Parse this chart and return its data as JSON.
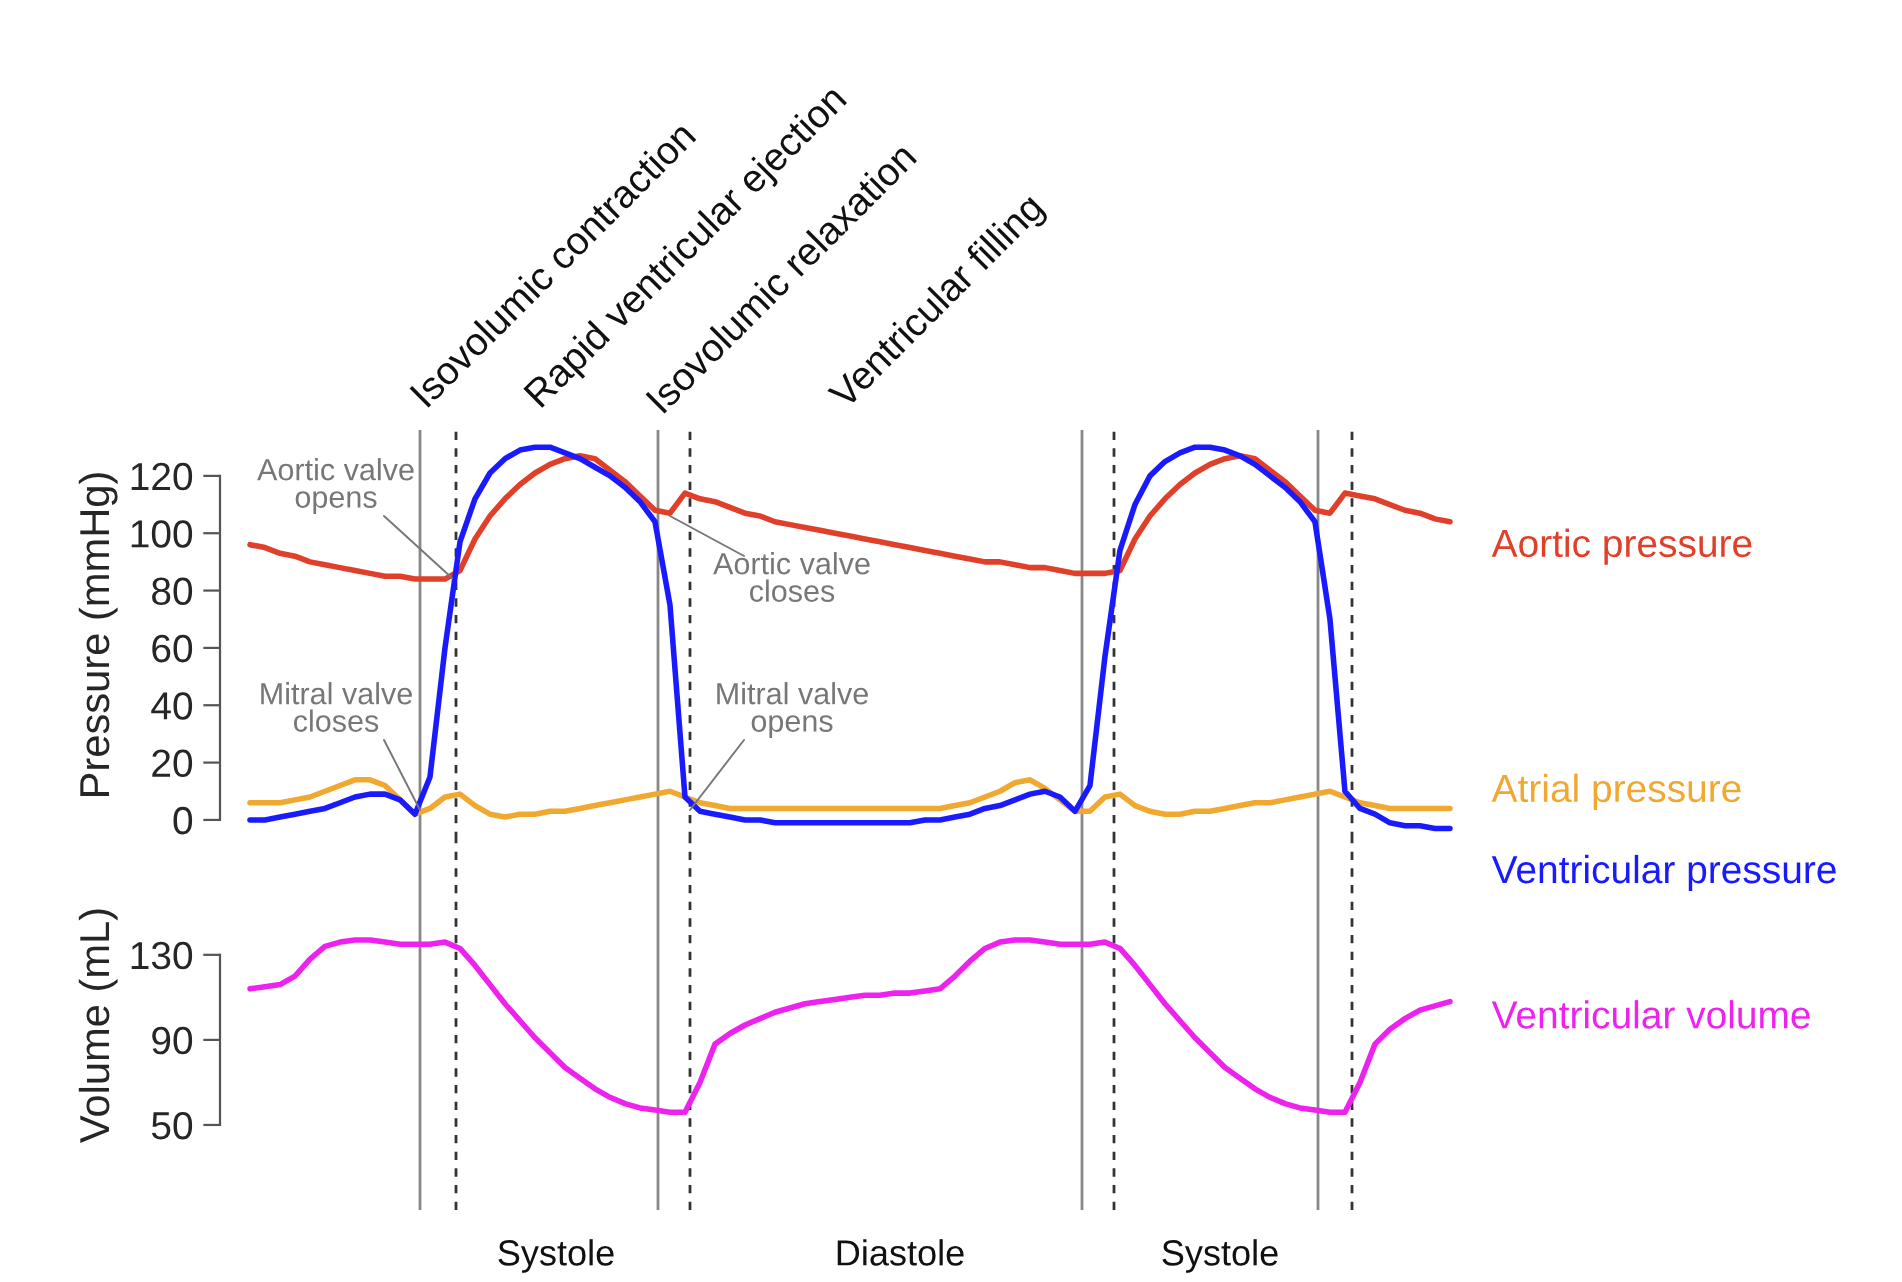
{
  "chart_data": [
    {
      "type": "line",
      "ylabel": "Pressure (mmHg)",
      "ylim": [
        -7,
        136
      ],
      "yticks": [
        0,
        20,
        40,
        60,
        80,
        100,
        120
      ],
      "tick_labels": "y",
      "grid": false,
      "legend": false,
      "categories": [
        null,
        null,
        null,
        null,
        null,
        null,
        null,
        null,
        null,
        null,
        null,
        null,
        null,
        null,
        null,
        null,
        null,
        null,
        null,
        null,
        null,
        null,
        null,
        null,
        null,
        null,
        null,
        null,
        null,
        null,
        null,
        null,
        null,
        null,
        null,
        null,
        null,
        null,
        null,
        null,
        null,
        null,
        null,
        null,
        null,
        null,
        null,
        null,
        null,
        null,
        null,
        null,
        null,
        null,
        null,
        null,
        null,
        null,
        null,
        null,
        null,
        null,
        null,
        null,
        null,
        null,
        null,
        null,
        null,
        null,
        null,
        null,
        null,
        null,
        null,
        null,
        null,
        null,
        null,
        null,
        null
      ],
      "series": [
        {
          "name": "Aortic pressure",
          "color": "#e0402a",
          "values": [
            96,
            95,
            93,
            92,
            90,
            89,
            88,
            87,
            86,
            85,
            85,
            84,
            84,
            84,
            87,
            98,
            106,
            112,
            117,
            121,
            124,
            126,
            127,
            126,
            122,
            118,
            113,
            108,
            107,
            114,
            112,
            111,
            109,
            107,
            106,
            104,
            103,
            102,
            101,
            100,
            99,
            98,
            97,
            96,
            95,
            94,
            93,
            92,
            91,
            90,
            90,
            89,
            88,
            88,
            87,
            86,
            86,
            86,
            87,
            98,
            106,
            112,
            117,
            121,
            124,
            126,
            127,
            126,
            122,
            118,
            113,
            108,
            107,
            114,
            113,
            112,
            110,
            108,
            107,
            105,
            104
          ]
        },
        {
          "name": "Atrial pressure",
          "color": "#f0a830",
          "values": [
            6,
            6,
            6,
            7,
            8,
            10,
            12,
            14,
            14,
            12,
            7,
            2,
            4,
            8,
            9,
            5,
            2,
            1,
            2,
            2,
            3,
            3,
            4,
            5,
            6,
            7,
            8,
            9,
            10,
            8,
            6,
            5,
            4,
            4,
            4,
            4,
            4,
            4,
            4,
            4,
            4,
            4,
            4,
            4,
            4,
            4,
            4,
            5,
            6,
            8,
            10,
            13,
            14,
            11,
            7,
            3,
            3,
            8,
            9,
            5,
            3,
            2,
            2,
            3,
            3,
            4,
            5,
            6,
            6,
            7,
            8,
            9,
            10,
            8,
            6,
            5,
            4,
            4,
            4,
            4,
            4
          ]
        },
        {
          "name": "Ventricular pressure",
          "color": "#1a1aff",
          "values": [
            0,
            0,
            1,
            2,
            3,
            4,
            6,
            8,
            9,
            9,
            7,
            2,
            15,
            60,
            97,
            112,
            121,
            126,
            129,
            130,
            130,
            128,
            126,
            123,
            120,
            116,
            111,
            104,
            75,
            8,
            3,
            2,
            1,
            0,
            0,
            -1,
            -1,
            -1,
            -1,
            -1,
            -1,
            -1,
            -1,
            -1,
            -1,
            0,
            0,
            1,
            2,
            4,
            5,
            7,
            9,
            10,
            8,
            3,
            12,
            57,
            94,
            110,
            120,
            125,
            128,
            130,
            130,
            129,
            127,
            124,
            120,
            116,
            111,
            104,
            70,
            10,
            4,
            2,
            -1,
            -2,
            -2,
            -3,
            -3
          ]
        }
      ],
      "annotations": [
        "Aortic valve\nopens",
        "Aortic valve\ncloses",
        "Mitral valve\ncloses",
        "Mitral valve\nopens",
        "Isovolumic contraction",
        "Rapid ventricular ejection",
        "Isovolumic relaxation",
        "Ventricular filling"
      ]
    },
    {
      "type": "line",
      "ylabel": "Volume (mL)",
      "ylim": [
        10,
        184
      ],
      "yticks": [
        50,
        90,
        130
      ],
      "tick_labels": "y",
      "grid": false,
      "legend": false,
      "categories": [
        null,
        null,
        null,
        null,
        null,
        null,
        null,
        null,
        null,
        null,
        null,
        null,
        null,
        null,
        null,
        null,
        null,
        null,
        null,
        null,
        null,
        null,
        null,
        null,
        null,
        null,
        null,
        null,
        null,
        null,
        null,
        null,
        null,
        null,
        null,
        null,
        null,
        null,
        null,
        null,
        null,
        null,
        null,
        null,
        null,
        null,
        null,
        null,
        null,
        null,
        null,
        null,
        null,
        null,
        null,
        null,
        null,
        null,
        null,
        null,
        null,
        null,
        null,
        null,
        null,
        null,
        null,
        null,
        null,
        null,
        null,
        null,
        null,
        null,
        null,
        null,
        null,
        null,
        null,
        null,
        null
      ],
      "series": [
        {
          "name": "Ventricular volume",
          "color": "#ee22ee",
          "values": [
            114,
            115,
            116,
            120,
            128,
            134,
            136,
            137,
            137,
            136,
            135,
            135,
            135,
            136,
            133,
            125,
            116,
            107,
            99,
            91,
            84,
            77,
            72,
            67,
            63,
            60,
            58,
            57,
            56,
            56,
            70,
            88,
            93,
            97,
            100,
            103,
            105,
            107,
            108,
            109,
            110,
            111,
            111,
            112,
            112,
            113,
            114,
            120,
            127,
            133,
            136,
            137,
            137,
            136,
            135,
            135,
            135,
            136,
            133,
            125,
            116,
            107,
            99,
            91,
            84,
            77,
            72,
            67,
            63,
            60,
            58,
            57,
            56,
            56,
            70,
            88,
            95,
            100,
            104,
            106,
            108
          ]
        }
      ],
      "annotations": [
        "Systole",
        "Diastole",
        "Systole"
      ]
    }
  ]
}
